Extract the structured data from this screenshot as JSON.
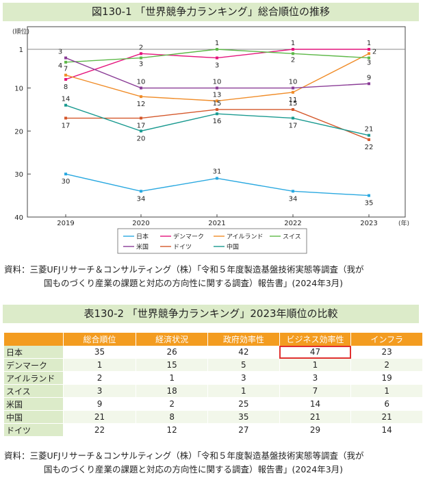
{
  "figure": {
    "title": "図130-1 「世界競争力ランキング」総合順位の推移",
    "source_line1": "資料：三菱UFJリサーチ＆コンサルティング（株）「令和５年度製造基盤技術実態等調査（我が",
    "source_line2": "国ものづくり産業の課題と対応の方向性に関する調査）報告書」(2024年3月)"
  },
  "chart_data": {
    "type": "line",
    "ylabel": "(順位)",
    "xlabel": "(年)",
    "y_inverted": true,
    "ylim": [
      1,
      40
    ],
    "yticks": [
      "1",
      "10",
      "20",
      "30",
      "40"
    ],
    "x": [
      "2019",
      "2020",
      "2021",
      "2022",
      "2023"
    ],
    "legend_position": "bottom",
    "series": [
      {
        "name": "日本",
        "color": "#29a8e0",
        "values": [
          30,
          34,
          31,
          34,
          35
        ]
      },
      {
        "name": "デンマーク",
        "color": "#e4147c",
        "values": [
          8,
          2,
          3,
          1,
          1
        ]
      },
      {
        "name": "アイルランド",
        "color": "#f08c28",
        "values": [
          7,
          12,
          13,
          11,
          2
        ]
      },
      {
        "name": "スイス",
        "color": "#5db848",
        "values": [
          4,
          3,
          1,
          2,
          3
        ]
      },
      {
        "name": "米国",
        "color": "#8a3c96",
        "values": [
          3,
          10,
          10,
          10,
          9
        ]
      },
      {
        "name": "ドイツ",
        "color": "#d4572a",
        "values": [
          17,
          17,
          15,
          15,
          22
        ]
      },
      {
        "name": "中国",
        "color": "#1a9a90",
        "values": [
          14,
          20,
          16,
          17,
          21
        ]
      }
    ]
  },
  "table": {
    "title": "表130-2 「世界競争力ランキング」2023年順位の比較",
    "headers": [
      "",
      "総合順位",
      "経済状況",
      "政府効率性",
      "ビジネス効率性",
      "インフラ"
    ],
    "rows": [
      {
        "name": "日本",
        "values": [
          "35",
          "26",
          "42",
          "47",
          "23"
        ]
      },
      {
        "name": "デンマーク",
        "values": [
          "1",
          "15",
          "5",
          "1",
          "2"
        ]
      },
      {
        "name": "アイルランド",
        "values": [
          "2",
          "1",
          "3",
          "3",
          "19"
        ]
      },
      {
        "name": "スイス",
        "values": [
          "3",
          "18",
          "1",
          "7",
          "1"
        ]
      },
      {
        "name": "米国",
        "values": [
          "9",
          "2",
          "25",
          "14",
          "6"
        ]
      },
      {
        "name": "中国",
        "values": [
          "21",
          "8",
          "35",
          "21",
          "21"
        ]
      },
      {
        "name": "ドイツ",
        "values": [
          "22",
          "12",
          "27",
          "29",
          "14"
        ]
      }
    ],
    "highlight": {
      "row": 0,
      "col": 3
    },
    "source_line1": "資料：三菱UFJリサーチ＆コンサルティング（株）「令和５年度製造基盤技術実態等調査（我が",
    "source_line2": "国ものづくり産業の課題と対応の方向性に関する調査）報告書」(2024年3月)"
  }
}
